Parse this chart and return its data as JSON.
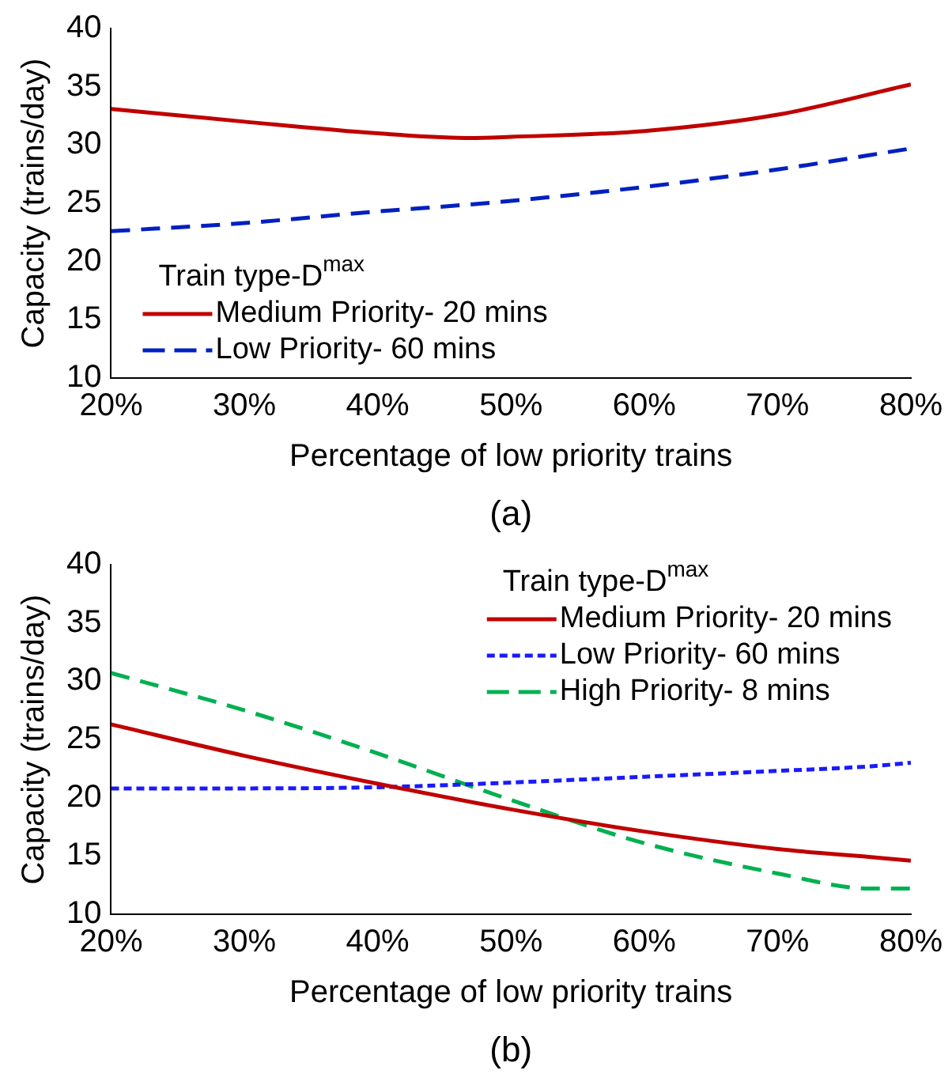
{
  "chart_data": [
    {
      "type": "line",
      "xlabel": "Percentage of low priority trains",
      "ylabel": "Capacity (trains/day)",
      "legend_title": "Train type-D$^{max}$",
      "legend": "bottom left",
      "grid": false,
      "marker": "none",
      "annotations": [
        "(a)"
      ],
      "x": [
        20,
        30,
        40,
        47,
        50,
        60,
        70,
        80
      ],
      "xlim": [
        20,
        80
      ],
      "xticks": [
        {
          "value": 20,
          "label": "20%"
        },
        {
          "value": 30,
          "label": "30%"
        },
        {
          "value": 40,
          "label": "40%"
        },
        {
          "value": 50,
          "label": "50%"
        },
        {
          "value": 60,
          "label": "60%"
        },
        {
          "value": 70,
          "label": "70%"
        },
        {
          "value": 80,
          "label": "80%"
        }
      ],
      "ylim": [
        10,
        40
      ],
      "yticks": [
        10,
        15,
        20,
        25,
        30,
        35,
        40
      ],
      "series": [
        {
          "name": "Medium Priority- 20 mins",
          "color": "#c00000",
          "line_style": "solid",
          "values": [
            33.1,
            32.0,
            31.0,
            30.6,
            30.7,
            31.2,
            32.6,
            35.2
          ]
        },
        {
          "name": "Low Priority- 60 mins",
          "color": "#0020c0",
          "line_style": "dashed",
          "values": [
            22.6,
            23.3,
            24.3,
            24.9,
            25.2,
            26.4,
            27.9,
            29.7
          ]
        }
      ]
    },
    {
      "type": "line",
      "xlabel": "Percentage of low priority trains",
      "ylabel": "Capacity (trains/day)",
      "legend_title": "Train type-D$^{max}$",
      "legend": "top right",
      "grid": false,
      "marker": "none",
      "annotations": [
        "(b)"
      ],
      "x": [
        20,
        30,
        40,
        50,
        60,
        70,
        77,
        80
      ],
      "xlim": [
        20,
        80
      ],
      "xticks": [
        {
          "value": 20,
          "label": "20%"
        },
        {
          "value": 30,
          "label": "30%"
        },
        {
          "value": 40,
          "label": "40%"
        },
        {
          "value": 50,
          "label": "50%"
        },
        {
          "value": 60,
          "label": "60%"
        },
        {
          "value": 70,
          "label": "70%"
        },
        {
          "value": 80,
          "label": "80%"
        }
      ],
      "ylim": [
        10,
        40
      ],
      "yticks": [
        10,
        15,
        20,
        25,
        30,
        35,
        40
      ],
      "series": [
        {
          "name": "Medium Priority- 20 mins",
          "color": "#c00000",
          "line_style": "solid",
          "values": [
            26.3,
            23.6,
            21.2,
            19.0,
            17.1,
            15.6,
            14.9,
            14.6
          ]
        },
        {
          "name": "Low Priority- 60 mins",
          "color": "#1a1aff",
          "line_style": "dotted",
          "values": [
            20.8,
            20.8,
            20.9,
            21.3,
            21.8,
            22.3,
            22.7,
            23.0
          ]
        },
        {
          "name": "High Priority- 8 mins",
          "color": "#00b050",
          "line_style": "dashed",
          "values": [
            30.7,
            27.5,
            23.8,
            19.8,
            16.1,
            13.5,
            12.2,
            12.2
          ]
        }
      ]
    }
  ]
}
